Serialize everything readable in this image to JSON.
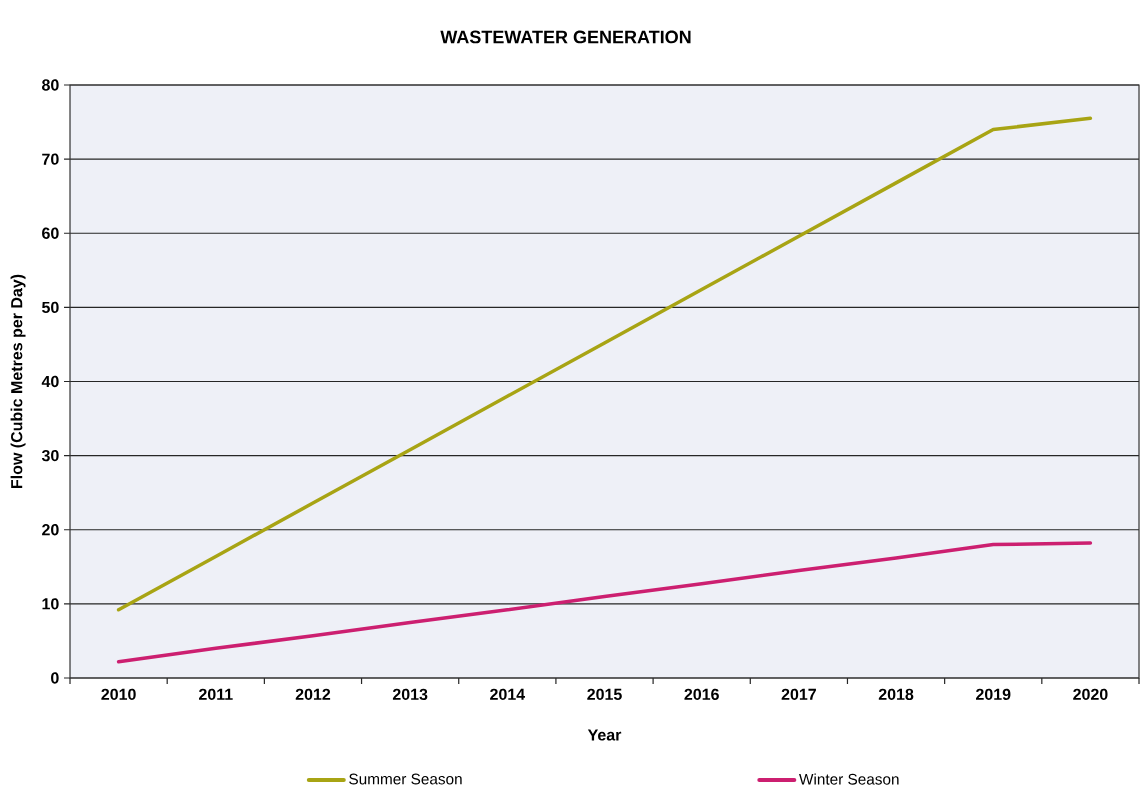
{
  "chart_data": {
    "type": "line",
    "title": "WASTEWATER GENERATION",
    "xlabel": "Year",
    "ylabel": "Flow (Cubic Metres per Day)",
    "categories": [
      "2010",
      "2011",
      "2012",
      "2013",
      "2014",
      "2015",
      "2016",
      "2017",
      "2018",
      "2019",
      "2020"
    ],
    "series": [
      {
        "name": "Summer Season",
        "color": "#a8a414",
        "values": [
          9.2,
          16.4,
          23.6,
          30.8,
          38.0,
          45.2,
          52.4,
          59.6,
          66.8,
          74.0,
          75.5
        ]
      },
      {
        "name": "Winter Season",
        "color": "#cc1f70",
        "values": [
          2.2,
          4.0,
          5.7,
          7.5,
          9.2,
          11.0,
          12.7,
          14.5,
          16.2,
          18.0,
          18.2
        ]
      }
    ],
    "ylim": [
      0,
      80
    ],
    "yticks": [
      0,
      10,
      20,
      30,
      40,
      50,
      60,
      70,
      80
    ],
    "grid": "y",
    "legend": "bottom"
  }
}
